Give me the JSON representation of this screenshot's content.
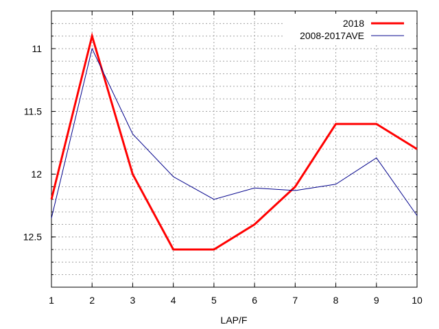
{
  "chart_data": {
    "type": "line",
    "title": "",
    "xlabel": "LAP/F",
    "ylabel": "",
    "x": [
      1,
      2,
      3,
      4,
      5,
      6,
      7,
      8,
      9,
      10
    ],
    "xlim": [
      1,
      10
    ],
    "ylim": [
      12.9,
      10.7
    ],
    "y_inverted": true,
    "x_ticks": [
      "1",
      "2",
      "3",
      "4",
      "5",
      "6",
      "7",
      "8",
      "9",
      "10"
    ],
    "y_ticks": [
      "11",
      "11.5",
      "12",
      "12.5"
    ],
    "y_tick_values": [
      11,
      11.5,
      12,
      12.5
    ],
    "y_minor_step": 0.1,
    "grid": true,
    "legend_position": "top-right",
    "series": [
      {
        "name": "2018",
        "color": "#ff0000",
        "values": [
          12.2,
          10.9,
          12.0,
          12.6,
          12.6,
          12.4,
          12.1,
          11.6,
          11.6,
          11.8
        ]
      },
      {
        "name": "2008-2017AVE",
        "color": "#00008b",
        "values": [
          12.35,
          11.0,
          11.68,
          12.02,
          12.2,
          12.11,
          12.13,
          12.08,
          11.87,
          12.33
        ]
      }
    ]
  }
}
